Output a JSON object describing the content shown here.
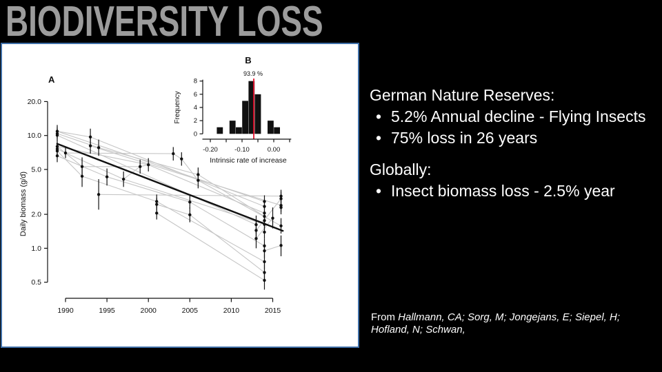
{
  "slide": {
    "title": "BIODIVERSITY LOSS"
  },
  "colors": {
    "background": "#000000",
    "title_gray": "#9c9c9c",
    "panel_border_blue": "#3f6fa8",
    "panel_white": "#ffffff",
    "connector_gray": "#c6c6c6",
    "ink_black": "#111111",
    "highlight_red": "#e8112d",
    "body_text_white": "#ffffff"
  },
  "content": {
    "bullet_char": "•",
    "sections": [
      {
        "heading": "German Nature Reserves:",
        "bullets": [
          "5.2% Annual decline - Flying Insects",
          "75% loss in 26 years"
        ]
      },
      {
        "heading": "Globally:",
        "bullets": [
          "Insect biomass loss - 2.5% year"
        ]
      }
    ],
    "citation": {
      "prefix": "From ",
      "italic": "Hallmann, CA; Sorg, M; Jongejans, E; Siepel, H; Hofland, N; Schwan,"
    }
  },
  "chart_data": [
    {
      "type": "scatter",
      "panel_label": "A",
      "ylabel": "Daily biomass (g/d)",
      "xlabel": "",
      "y_scale": "log",
      "xlim": [
        1988.3,
        2017.3
      ],
      "ylim": [
        0.45,
        21
      ],
      "x_ticks": [
        1990,
        1995,
        2000,
        2005,
        2010,
        2015
      ],
      "y_ticks": [
        {
          "v": 20,
          "label": "20.0"
        },
        {
          "v": 10,
          "label": "10.0"
        },
        {
          "v": 5,
          "label": "5.0"
        },
        {
          "v": 2,
          "label": "2.0"
        },
        {
          "v": 1,
          "label": "1.0"
        },
        {
          "v": 0.5,
          "label": "0.5"
        }
      ],
      "trend": [
        1988.9,
        8.5,
        2016.3,
        1.42
      ],
      "points": [
        [
          1989,
          10.9,
          9.6,
          12.4
        ],
        [
          1989,
          10.4,
          9.2,
          11.8
        ],
        [
          1989,
          10.05,
          8.9,
          11.3
        ],
        [
          1989,
          8.0,
          7.1,
          9.1
        ],
        [
          1989,
          7.6,
          6.7,
          8.6
        ],
        [
          1989,
          7.3,
          6.5,
          8.3
        ],
        [
          1989,
          6.6,
          5.8,
          7.5
        ],
        [
          1990,
          7.0,
          6.3,
          7.9
        ],
        [
          1992,
          5.3,
          4.4,
          6.4
        ],
        [
          1992,
          4.35,
          3.5,
          5.4
        ],
        [
          1993,
          9.7,
          8.2,
          11.5
        ],
        [
          1993,
          8.1,
          6.9,
          9.5
        ],
        [
          1994,
          7.8,
          6.6,
          9.2
        ],
        [
          1994,
          3.0,
          2.2,
          4.1
        ],
        [
          1995,
          4.3,
          3.6,
          5.1
        ],
        [
          1997,
          4.1,
          3.5,
          4.8
        ],
        [
          1999,
          5.3,
          4.6,
          6.1
        ],
        [
          2000,
          5.5,
          4.8,
          6.3
        ],
        [
          2001,
          2.6,
          2.3,
          3.0
        ],
        [
          2001,
          2.45,
          2.15,
          2.8
        ],
        [
          2001,
          2.05,
          1.8,
          2.35
        ],
        [
          2003,
          6.9,
          6.0,
          7.9
        ],
        [
          2004,
          6.2,
          5.4,
          7.1
        ],
        [
          2005,
          2.57,
          2.25,
          2.95
        ],
        [
          2005,
          1.98,
          1.7,
          2.3
        ],
        [
          2006,
          4.5,
          3.9,
          5.2
        ],
        [
          2006,
          4.0,
          3.4,
          4.7
        ],
        [
          2013,
          1.62,
          1.35,
          1.95
        ],
        [
          2013,
          1.44,
          1.2,
          1.73
        ],
        [
          2013,
          1.22,
          1.0,
          1.5
        ],
        [
          2014,
          2.6,
          2.3,
          2.95
        ],
        [
          2014,
          2.35,
          2.1,
          2.65
        ],
        [
          2014,
          2.05,
          1.85,
          2.3
        ],
        [
          2014,
          1.92,
          1.72,
          2.15
        ],
        [
          2014,
          1.76,
          1.58,
          1.97
        ],
        [
          2014,
          1.63,
          1.45,
          1.83
        ],
        [
          2014,
          1.39,
          1.22,
          1.58
        ],
        [
          2014,
          1.05,
          0.9,
          1.22
        ],
        [
          2014,
          0.95,
          0.82,
          1.1
        ],
        [
          2014,
          0.76,
          0.65,
          0.89
        ],
        [
          2014,
          0.61,
          0.52,
          0.72
        ],
        [
          2014,
          0.52,
          0.43,
          0.63
        ],
        [
          2015,
          1.85,
          1.5,
          2.3
        ],
        [
          2016,
          2.9,
          2.55,
          3.3
        ],
        [
          2016,
          2.75,
          2.4,
          3.15
        ],
        [
          2016,
          2.4,
          2.1,
          2.75
        ],
        [
          2016,
          2.3,
          2.0,
          2.6
        ],
        [
          2016,
          1.58,
          1.35,
          1.85
        ],
        [
          2016,
          1.06,
          0.85,
          1.3
        ]
      ],
      "segments": [
        [
          1989,
          10.9,
          1993,
          9.7
        ],
        [
          1989,
          10.9,
          2014,
          2.6
        ],
        [
          1989,
          10.4,
          1994,
          7.8
        ],
        [
          1989,
          10.05,
          2013,
          1.62
        ],
        [
          1989,
          8.0,
          1992,
          5.3
        ],
        [
          1989,
          8.0,
          2000,
          5.5
        ],
        [
          1989,
          7.6,
          1990,
          7.0
        ],
        [
          1989,
          7.3,
          1992,
          4.35
        ],
        [
          1989,
          6.6,
          1995,
          4.3
        ],
        [
          1990,
          7.0,
          2003,
          6.9
        ],
        [
          1990,
          7.0,
          1997,
          4.1
        ],
        [
          1992,
          5.3,
          1999,
          5.3
        ],
        [
          1992,
          4.35,
          2001,
          2.6
        ],
        [
          1993,
          9.7,
          2014,
          2.35
        ],
        [
          1993,
          8.1,
          2016,
          2.4
        ],
        [
          1994,
          7.8,
          2006,
          4.5
        ],
        [
          1994,
          3.0,
          2016,
          2.9
        ],
        [
          1995,
          4.3,
          2005,
          2.57
        ],
        [
          1997,
          4.1,
          2014,
          1.63
        ],
        [
          1997,
          4.1,
          1999,
          5.3
        ],
        [
          1999,
          5.3,
          2000,
          5.5
        ],
        [
          2000,
          5.5,
          2014,
          2.05
        ],
        [
          2001,
          2.6,
          2014,
          0.76
        ],
        [
          2001,
          2.45,
          2005,
          1.98
        ],
        [
          2001,
          2.05,
          2014,
          0.52
        ],
        [
          2003,
          6.9,
          2004,
          6.2
        ],
        [
          2004,
          6.2,
          2006,
          4.0
        ],
        [
          2005,
          2.57,
          2014,
          1.05
        ],
        [
          2005,
          1.98,
          2014,
          0.61
        ],
        [
          2006,
          4.5,
          2014,
          1.92
        ],
        [
          2006,
          4.0,
          2016,
          1.58
        ],
        [
          2013,
          1.44,
          2016,
          2.75
        ],
        [
          2013,
          1.22,
          2015,
          1.85
        ],
        [
          2014,
          0.95,
          2016,
          1.06
        ]
      ]
    },
    {
      "type": "histogram",
      "panel_label": "B",
      "xlabel": "Intrinsic rate of increase",
      "ylabel": "Frequency",
      "bin_width": 0.02,
      "bins": [
        {
          "x": -0.17,
          "h": 1
        },
        {
          "x": -0.13,
          "h": 2
        },
        {
          "x": -0.11,
          "h": 1
        },
        {
          "x": -0.09,
          "h": 5
        },
        {
          "x": -0.07,
          "h": 8
        },
        {
          "x": -0.05,
          "h": 6
        },
        {
          "x": -0.01,
          "h": 2
        },
        {
          "x": 0.01,
          "h": 1
        }
      ],
      "y_ticks": [
        0,
        2,
        4,
        6,
        8
      ],
      "x_tick_labels": [
        {
          "v": -0.2,
          "label": "-0.20"
        },
        {
          "v": -0.1,
          "label": "-0.10"
        },
        {
          "v": 0.0,
          "label": "0.00"
        }
      ],
      "x_minor_ticks": [
        -0.15,
        -0.05,
        0.05
      ],
      "annotation": {
        "text": "93.9 %",
        "x": -0.063
      }
    }
  ]
}
